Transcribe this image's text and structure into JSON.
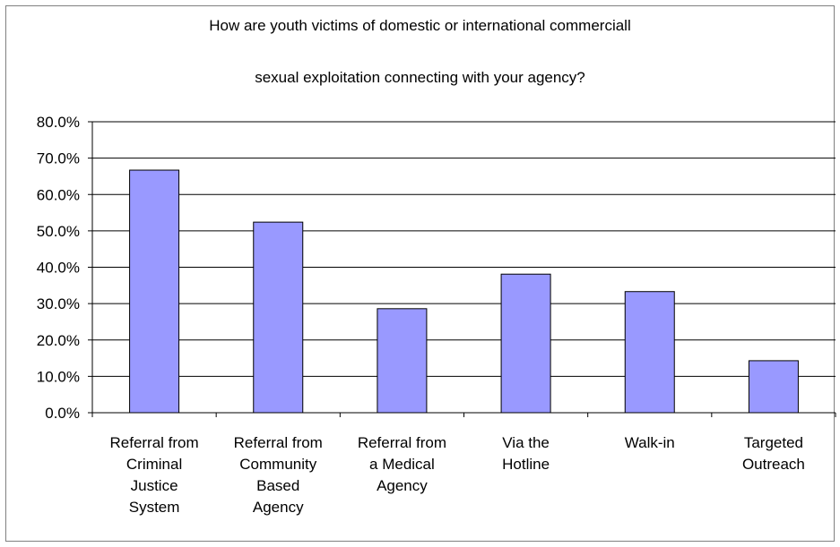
{
  "chart_data": {
    "type": "bar",
    "title_lines": [
      "How are youth victims of domestic or international  commerciall",
      "sexual exploitation connecting with your agency?"
    ],
    "xlabel": "",
    "ylabel": "",
    "categories": [
      [
        "Referral from",
        "Criminal",
        "Justice",
        "System"
      ],
      [
        "Referral from",
        "Community",
        "Based",
        "Agency"
      ],
      [
        "Referral from",
        "a Medical",
        "Agency"
      ],
      [
        "Via the",
        "Hotline"
      ],
      [
        "Walk-in"
      ],
      [
        "Targeted",
        "Outreach"
      ]
    ],
    "values": [
      66.7,
      52.4,
      28.6,
      38.1,
      33.3,
      14.3
    ],
    "ylim": [
      0,
      80
    ],
    "yticks": [
      "0.0%",
      "10.0%",
      "20.0%",
      "30.0%",
      "40.0%",
      "50.0%",
      "60.0%",
      "70.0%",
      "80.0%"
    ],
    "grid": true,
    "legend": "none",
    "colors": {
      "bar_fill": "#9999ff",
      "bar_stroke": "#000000",
      "grid": "#000000",
      "axis": "#000000"
    }
  }
}
